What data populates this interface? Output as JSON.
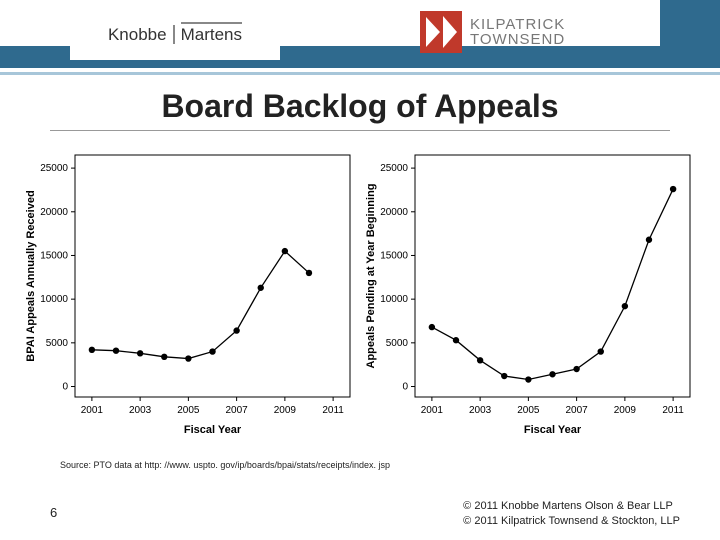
{
  "header": {
    "logo_left_a": "Knobbe",
    "logo_left_b": "Martens",
    "logo_right_a": "KILPATRICK",
    "logo_right_b": "TOWNSEND",
    "strip_color": "#2f6a8e",
    "underline_color": "#a7c6d9",
    "kt_mark_color": "#c0392b"
  },
  "title": "Board Backlog of Appeals",
  "chart_left": {
    "type": "line",
    "ylabel": "BPAI Appeals Annually Received",
    "xlabel": "Fiscal Year",
    "xticks": [
      2001,
      2003,
      2005,
      2007,
      2009,
      2011
    ],
    "yticks": [
      0,
      5000,
      10000,
      15000,
      20000,
      25000
    ],
    "xlim": [
      2000.3,
      2011.7
    ],
    "ylim": [
      -1200,
      26500
    ],
    "x": [
      2001,
      2002,
      2003,
      2004,
      2005,
      2006,
      2007,
      2008,
      2009,
      2010
    ],
    "y": [
      4200,
      4100,
      3800,
      3400,
      3200,
      4000,
      6400,
      11300,
      15500,
      13000
    ],
    "line_color": "#000000",
    "marker": "circle",
    "marker_size": 3.2,
    "line_width": 1.3,
    "background": "#ffffff",
    "label_fontsize": 11,
    "tick_fontsize": 10,
    "grid": false
  },
  "chart_right": {
    "type": "line",
    "ylabel": "Appeals Pending at Year Beginning",
    "xlabel": "Fiscal Year",
    "xticks": [
      2001,
      2003,
      2005,
      2007,
      2009,
      2011
    ],
    "yticks": [
      0,
      5000,
      10000,
      15000,
      20000,
      25000
    ],
    "xlim": [
      2000.3,
      2011.7
    ],
    "ylim": [
      -1200,
      26500
    ],
    "x": [
      2001,
      2002,
      2003,
      2004,
      2005,
      2006,
      2007,
      2008,
      2009,
      2010,
      2011
    ],
    "y": [
      6800,
      5300,
      3000,
      1200,
      800,
      1400,
      2000,
      4000,
      9200,
      16800,
      22600
    ],
    "line_color": "#000000",
    "marker": "circle",
    "marker_size": 3.2,
    "line_width": 1.3,
    "background": "#ffffff",
    "label_fontsize": 11,
    "tick_fontsize": 10,
    "grid": false
  },
  "source": "Source:  PTO data at http: //www. uspto. gov/ip/boards/bpai/stats/receipts/index. jsp",
  "footer_line1": "© 2011 Knobbe Martens Olson & Bear LLP",
  "footer_line2": "© 2011 Kilpatrick Townsend & Stockton, LLP",
  "page_number": "6"
}
